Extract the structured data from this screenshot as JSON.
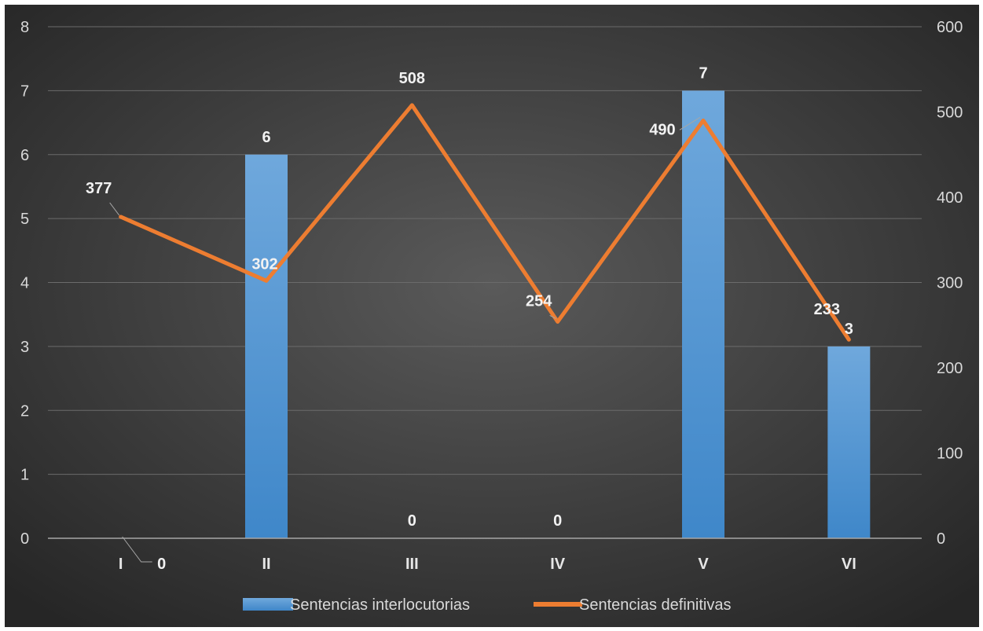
{
  "chart_data": {
    "type": "bar",
    "categories": [
      "I",
      "II",
      "III",
      "IV",
      "V",
      "VI"
    ],
    "series": [
      {
        "name": "Sentencias interlocutorias",
        "type": "bar",
        "axis": "left",
        "values": [
          0,
          6,
          0,
          0,
          7,
          3
        ],
        "labels": [
          "0",
          "6",
          "0",
          "0",
          "7",
          "3"
        ]
      },
      {
        "name": "Sentencias definitivas",
        "type": "line",
        "axis": "right",
        "values": [
          377,
          302,
          508,
          254,
          490,
          233
        ],
        "labels": [
          "377",
          "302",
          "508",
          "254",
          "490",
          "233"
        ]
      }
    ],
    "y_left": {
      "min": 0,
      "max": 8,
      "ticks": [
        "0",
        "1",
        "2",
        "3",
        "4",
        "5",
        "6",
        "7",
        "8"
      ]
    },
    "y_right": {
      "min": 0,
      "max": 600,
      "ticks": [
        "0",
        "100",
        "200",
        "300",
        "400",
        "500",
        "600"
      ]
    },
    "title": "",
    "xlabel": "",
    "ylabel": "",
    "grid": true,
    "legend_position": "bottom",
    "colors": {
      "bar": "#5b9bd5",
      "line": "#ed7d31",
      "background_center": "#595959",
      "background_edge": "#262626"
    }
  }
}
